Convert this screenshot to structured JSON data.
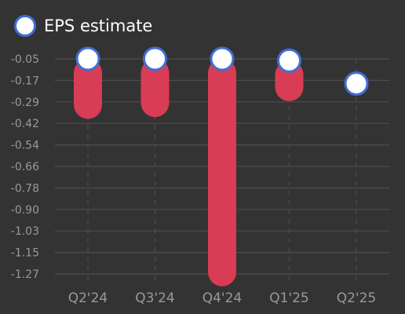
{
  "legend": {
    "label": "EPS estimate"
  },
  "colors": {
    "background": "#333333",
    "grid": "#4d4d4d",
    "bar": "#d93c55",
    "marker_fill": "#ffffff",
    "marker_stroke": "#3e6fd8",
    "tick_text": "#999999"
  },
  "chart_data": {
    "type": "bar",
    "categories": [
      "Q2'24",
      "Q3'24",
      "Q4'24",
      "Q1'25",
      "Q2'25"
    ],
    "series": [
      {
        "name": "EPS estimate",
        "values": [
          -0.05,
          -0.05,
          -0.05,
          -0.06,
          -0.19
        ]
      },
      {
        "values": [
          -0.39,
          -0.38,
          -1.34,
          -0.29,
          null
        ]
      }
    ],
    "y_ticks": [
      "-0.05",
      "-0.17",
      "-0.29",
      "-0.42",
      "-0.54",
      "-0.66",
      "-0.78",
      "-0.90",
      "-1.03",
      "-1.15",
      "-1.27"
    ],
    "ylim": [
      -1.32,
      -0.05
    ],
    "grid": true,
    "legend_position": "top-left"
  }
}
